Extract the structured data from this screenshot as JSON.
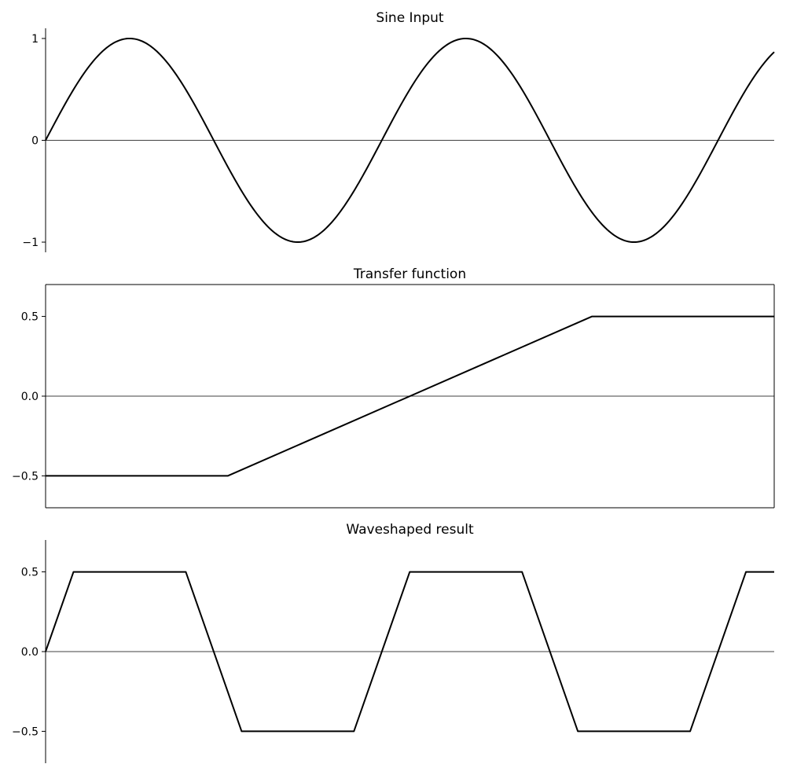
{
  "chart_data": [
    {
      "type": "line",
      "title": "Sine Input",
      "xlabel": "",
      "ylabel": "",
      "xlim": [
        0,
        2.167
      ],
      "ylim": [
        -1.1,
        1.1
      ],
      "yticks": [
        {
          "value": 1,
          "label": "1"
        },
        {
          "value": 0,
          "label": "0"
        },
        {
          "value": -1,
          "label": "−1"
        }
      ],
      "grid": false,
      "frame": "left-spine",
      "zero_line": true,
      "series": [
        {
          "color": "#000000",
          "x": [
            0,
            0.25,
            0.5,
            0.75,
            1.0,
            1.25,
            1.5,
            1.75,
            2.0,
            2.167
          ],
          "y": [
            0,
            1,
            0,
            -1,
            0,
            1,
            0,
            -1,
            0,
            0.866
          ]
        }
      ]
    },
    {
      "type": "line",
      "title": "Transfer function",
      "xlabel": "",
      "ylabel": "",
      "xlim": [
        -1,
        1
      ],
      "ylim": [
        -0.7,
        0.7
      ],
      "yticks": [
        {
          "value": 0.5,
          "label": "0.5"
        },
        {
          "value": 0,
          "label": "0.0"
        },
        {
          "value": -0.5,
          "label": "−0.5"
        }
      ],
      "grid": false,
      "frame": "box",
      "zero_line": true,
      "series": [
        {
          "color": "#000000",
          "x": [
            -1,
            -0.5,
            0.5,
            1
          ],
          "y": [
            -0.5,
            -0.5,
            0.5,
            0.5
          ]
        }
      ]
    },
    {
      "type": "line",
      "title": "Waveshaped result",
      "xlabel": "",
      "ylabel": "",
      "xlim": [
        0,
        2.167
      ],
      "ylim": [
        -0.7,
        0.7
      ],
      "yticks": [
        {
          "value": 0.5,
          "label": "0.5"
        },
        {
          "value": 0,
          "label": "0.0"
        },
        {
          "value": -0.5,
          "label": "−0.5"
        }
      ],
      "grid": false,
      "frame": "left-spine",
      "zero_line": true,
      "series": [
        {
          "color": "#000000",
          "x": [
            0,
            0.083,
            0.417,
            0.583,
            0.917,
            1.083,
            1.417,
            1.583,
            1.917,
            2.083,
            2.167
          ],
          "y": [
            0,
            0.5,
            0.5,
            -0.5,
            -0.5,
            0.5,
            0.5,
            -0.5,
            -0.5,
            0.5,
            0.5
          ]
        }
      ]
    }
  ]
}
